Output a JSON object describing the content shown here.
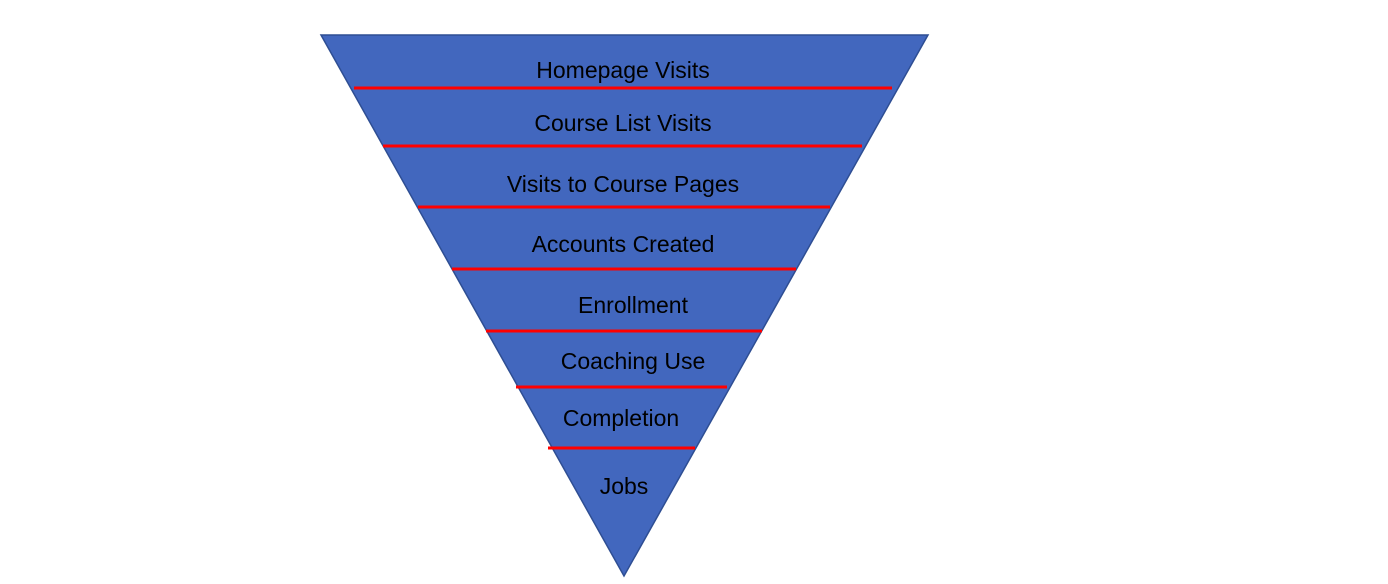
{
  "funnel": {
    "colors": {
      "fill": "#4267BE",
      "outline": "#2E4E93",
      "divider": "#FF0000",
      "text": "#000000"
    },
    "stages": [
      {
        "label": "Homepage Visits"
      },
      {
        "label": "Course List Visits"
      },
      {
        "label": "Visits to Course Pages"
      },
      {
        "label": "Accounts Created"
      },
      {
        "label": "Enrollment"
      },
      {
        "label": "Coaching Use"
      },
      {
        "label": "Completion"
      },
      {
        "label": "Jobs"
      }
    ]
  }
}
